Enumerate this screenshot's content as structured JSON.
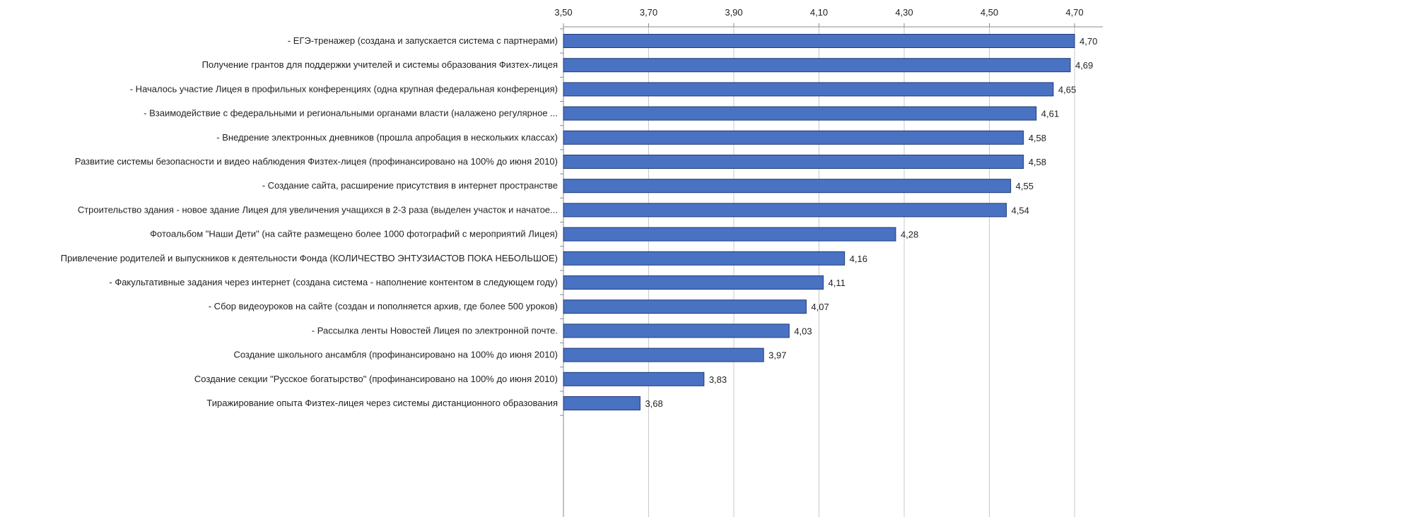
{
  "chart_data": {
    "type": "bar",
    "orientation": "horizontal",
    "title": "",
    "xlabel": "",
    "ylabel": "",
    "xlim": [
      3.5,
      4.7
    ],
    "ticks": [
      "3,50",
      "3,70",
      "3,90",
      "4,10",
      "4,30",
      "4,50",
      "4,70"
    ],
    "tick_values": [
      3.5,
      3.7,
      3.9,
      4.1,
      4.3,
      4.5,
      4.7
    ],
    "axis_position": "top",
    "grid": true,
    "legend": "none",
    "bar_color": "#4a72c2",
    "bar_edge_color": "#1f3a78",
    "categories": [
      "- ЕГЭ-тренажер (создана и запускается система с партнерами)",
      "Получение грантов для поддержки учителей и системы образования Физтех-лицея",
      "- Началось участие Лицея в профильных конференциях (одна крупная федеральная конференция)",
      "- Взаимодействие с федеральными и региональными органами власти (налажено регулярное ...",
      "- Внедрение электронных дневников (прошла апробация в нескольких классах)",
      "Развитие системы безопасности и видео наблюдения Физтех-лицея (профинансировано на 100% до июня 2010)",
      "- Создание сайта, расширение присутствия в интернет пространстве",
      "Строительство здания - новое здание Лицея для увеличения учащихся в 2-3 раза (выделен участок и начатое...",
      "Фотоальбом \"Наши Дети\" (на сайте размещено более 1000 фотографий с мероприятий Лицея)",
      "Привлечение родителей и выпускников к деятельности Фонда (КОЛИЧЕСТВО ЭНТУЗИАСТОВ ПОКА НЕБОЛЬШОЕ)",
      "- Факультативные задания через интернет (создана система - наполнение контентом в следующем году)",
      "- Сбор видеоуроков на сайте (создан и пополняется архив, где более 500 уроков)",
      "- Рассылка ленты Новостей Лицея по электронной почте.",
      "Создание школьного ансамбля (профинансировано на 100% до июня 2010)",
      "Создание секции \"Русское богатырство\" (профинансировано на 100% до июня 2010)",
      "Тиражирование опыта Физтех-лицея через системы дистанционного образования"
    ],
    "values": [
      4.7,
      4.69,
      4.65,
      4.61,
      4.58,
      4.58,
      4.55,
      4.54,
      4.28,
      4.16,
      4.11,
      4.07,
      4.03,
      3.97,
      3.83,
      3.68
    ],
    "data_labels": [
      "4,70",
      "4,69",
      "4,65",
      "4,61",
      "4,58",
      "4,58",
      "4,55",
      "4,54",
      "4,28",
      "4,16",
      "4,11",
      "4,07",
      "4,03",
      "3,97",
      "3,83",
      "3,68"
    ]
  }
}
